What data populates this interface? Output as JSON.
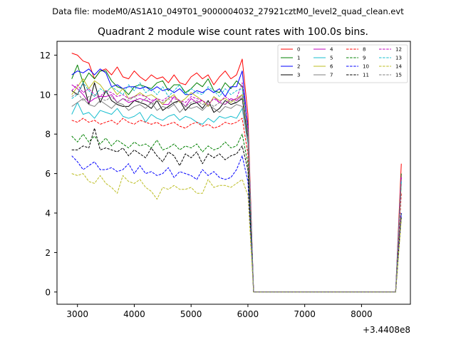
{
  "chart_data": {
    "type": "line",
    "suptitle": "Data file: modeM0/AS1A10_049T01_9000004032_27921cztM0_level2_quad_clean.evt",
    "title": "Quadrant 2 module wise count rates with 100.0s bins.",
    "xlabel": "",
    "ylabel": "",
    "x_offset_label": "+3.4408e8",
    "xlim": [
      2640,
      8860
    ],
    "ylim": [
      -0.62,
      12.7
    ],
    "x_ticks": [
      3000,
      4000,
      5000,
      6000,
      7000,
      8000
    ],
    "y_ticks": [
      0,
      2,
      4,
      6,
      8,
      10,
      12
    ],
    "grid": false,
    "legend_position": "top-right",
    "x": [
      2900,
      3000,
      3100,
      3200,
      3300,
      3400,
      3500,
      3600,
      3700,
      3800,
      3900,
      4000,
      4100,
      4200,
      4300,
      4400,
      4500,
      4600,
      4700,
      4800,
      4900,
      5000,
      5100,
      5200,
      5300,
      5400,
      5500,
      5600,
      5700,
      5800,
      5900,
      6000,
      6100,
      6200,
      6300,
      6400,
      6500,
      6600,
      6700,
      6800,
      6900,
      7000,
      7100,
      7200,
      7300,
      7400,
      7500,
      7600,
      7700,
      7800,
      7900,
      8000,
      8100,
      8200,
      8300,
      8400,
      8500,
      8600,
      8700
    ],
    "series": [
      {
        "name": "0",
        "color": "#ff0000",
        "dash": "solid",
        "values": [
          12.1,
          12.0,
          11.7,
          11.6,
          10.8,
          11.2,
          11.3,
          11.0,
          11.4,
          10.9,
          10.8,
          11.2,
          10.9,
          10.7,
          11.0,
          10.8,
          10.9,
          10.6,
          11.0,
          10.6,
          10.5,
          10.9,
          11.1,
          10.8,
          11.0,
          10.5,
          10.9,
          11.2,
          10.8,
          11.0,
          11.8,
          9.0,
          0.0,
          0.0,
          0.0,
          0.0,
          0.0,
          0.0,
          0.0,
          0.0,
          0.0,
          0.0,
          0.0,
          0.0,
          0.0,
          0.0,
          0.0,
          0.0,
          0.0,
          0.0,
          0.0,
          0.0,
          0.0,
          0.0,
          0.0,
          0.0,
          0.0,
          0.0,
          6.5
        ]
      },
      {
        "name": "1",
        "color": "#008000",
        "dash": "solid",
        "values": [
          10.8,
          11.5,
          10.6,
          11.1,
          10.8,
          11.2,
          11.2,
          10.7,
          10.4,
          10.3,
          10.0,
          10.4,
          10.5,
          10.4,
          10.3,
          10.6,
          10.7,
          10.2,
          10.5,
          10.5,
          10.1,
          10.3,
          10.6,
          10.4,
          10.8,
          10.2,
          10.1,
          10.6,
          10.3,
          10.7,
          10.4,
          8.5,
          0.0,
          0.0,
          0.0,
          0.0,
          0.0,
          0.0,
          0.0,
          0.0,
          0.0,
          0.0,
          0.0,
          0.0,
          0.0,
          0.0,
          0.0,
          0.0,
          0.0,
          0.0,
          0.0,
          0.0,
          0.0,
          0.0,
          0.0,
          0.0,
          0.0,
          0.0,
          6.0
        ]
      },
      {
        "name": "2",
        "color": "#0000ff",
        "dash": "solid",
        "values": [
          11.0,
          11.2,
          11.1,
          11.3,
          11.0,
          11.3,
          11.1,
          10.4,
          10.5,
          10.3,
          10.4,
          10.4,
          10.3,
          10.4,
          10.2,
          10.4,
          10.2,
          10.3,
          10.1,
          10.3,
          10.0,
          10.0,
          10.2,
          10.1,
          10.3,
          10.1,
          10.3,
          9.9,
          10.4,
          10.4,
          11.2,
          8.3,
          0.0,
          0.0,
          0.0,
          0.0,
          0.0,
          0.0,
          0.0,
          0.0,
          0.0,
          0.0,
          0.0,
          0.0,
          0.0,
          0.0,
          0.0,
          0.0,
          0.0,
          0.0,
          0.0,
          0.0,
          0.0,
          0.0,
          0.0,
          0.0,
          0.0,
          0.0,
          5.8
        ]
      },
      {
        "name": "3",
        "color": "#000000",
        "dash": "solid",
        "values": [
          10.2,
          10.0,
          10.6,
          9.5,
          10.6,
          9.6,
          10.2,
          9.7,
          9.5,
          9.4,
          9.4,
          9.7,
          9.6,
          9.5,
          9.3,
          9.7,
          9.2,
          9.4,
          9.6,
          9.7,
          9.2,
          9.5,
          9.6,
          9.3,
          9.7,
          9.1,
          9.3,
          9.7,
          9.5,
          9.6,
          9.8,
          7.8,
          0.0,
          0.0,
          0.0,
          0.0,
          0.0,
          0.0,
          0.0,
          0.0,
          0.0,
          0.0,
          0.0,
          0.0,
          0.0,
          0.0,
          0.0,
          0.0,
          0.0,
          0.0,
          0.0,
          0.0,
          0.0,
          0.0,
          0.0,
          0.0,
          0.0,
          0.0,
          4.0
        ]
      },
      {
        "name": "4",
        "color": "#bf00bf",
        "dash": "solid",
        "values": [
          10.5,
          10.3,
          10.0,
          9.6,
          9.8,
          9.9,
          9.9,
          10.0,
          9.6,
          9.8,
          9.6,
          9.7,
          9.8,
          9.7,
          9.6,
          9.8,
          9.5,
          9.5,
          9.9,
          9.7,
          9.4,
          9.8,
          9.6,
          9.7,
          9.4,
          9.9,
          9.6,
          9.5,
          9.8,
          9.7,
          10.0,
          8.2,
          0.0,
          0.0,
          0.0,
          0.0,
          0.0,
          0.0,
          0.0,
          0.0,
          0.0,
          0.0,
          0.0,
          0.0,
          0.0,
          0.0,
          0.0,
          0.0,
          0.0,
          0.0,
          0.0,
          0.0,
          0.0,
          0.0,
          0.0,
          0.0,
          0.0,
          0.0,
          5.8
        ]
      },
      {
        "name": "5",
        "color": "#17becf",
        "dash": "solid",
        "values": [
          9.0,
          9.6,
          9.0,
          9.1,
          8.8,
          9.2,
          9.1,
          9.0,
          9.3,
          8.9,
          8.8,
          8.9,
          9.1,
          8.6,
          9.0,
          8.8,
          8.7,
          8.9,
          9.0,
          8.7,
          8.9,
          8.8,
          8.6,
          8.5,
          8.8,
          8.6,
          8.9,
          8.8,
          8.9,
          8.8,
          9.3,
          7.5,
          0.0,
          0.0,
          0.0,
          0.0,
          0.0,
          0.0,
          0.0,
          0.0,
          0.0,
          0.0,
          0.0,
          0.0,
          0.0,
          0.0,
          0.0,
          0.0,
          0.0,
          0.0,
          0.0,
          0.0,
          0.0,
          0.0,
          0.0,
          0.0,
          0.0,
          0.0,
          5.6
        ]
      },
      {
        "name": "6",
        "color": "#bcbd22",
        "dash": "solid",
        "values": [
          10.0,
          10.4,
          10.8,
          10.3,
          10.7,
          10.5,
          10.1,
          10.4,
          10.0,
          10.3,
          9.8,
          9.9,
          10.1,
          9.9,
          10.0,
          9.8,
          9.5,
          9.8,
          10.0,
          9.6,
          9.8,
          10.1,
          9.9,
          9.7,
          9.4,
          9.9,
          9.7,
          9.8,
          9.6,
          9.8,
          10.0,
          8.0,
          0.0,
          0.0,
          0.0,
          0.0,
          0.0,
          0.0,
          0.0,
          0.0,
          0.0,
          0.0,
          0.0,
          0.0,
          0.0,
          0.0,
          0.0,
          0.0,
          0.0,
          0.0,
          0.0,
          0.0,
          0.0,
          0.0,
          0.0,
          0.0,
          0.0,
          0.0,
          5.5
        ]
      },
      {
        "name": "7",
        "color": "#7f7f7f",
        "dash": "solid",
        "values": [
          9.4,
          9.6,
          9.8,
          9.5,
          9.4,
          9.7,
          9.5,
          9.3,
          9.6,
          9.5,
          9.2,
          9.4,
          9.5,
          9.3,
          9.6,
          9.2,
          9.4,
          9.3,
          9.5,
          9.1,
          9.4,
          9.3,
          9.4,
          9.2,
          9.5,
          9.3,
          9.1,
          9.4,
          9.3,
          9.5,
          9.4,
          7.6,
          0.0,
          0.0,
          0.0,
          0.0,
          0.0,
          0.0,
          0.0,
          0.0,
          0.0,
          0.0,
          0.0,
          0.0,
          0.0,
          0.0,
          0.0,
          0.0,
          0.0,
          0.0,
          0.0,
          0.0,
          0.0,
          0.0,
          0.0,
          0.0,
          0.0,
          0.0,
          5.7
        ]
      },
      {
        "name": "8",
        "color": "#ff0000",
        "dash": "dashed",
        "values": [
          8.7,
          8.6,
          8.8,
          8.6,
          8.7,
          8.5,
          8.6,
          8.7,
          8.5,
          8.8,
          8.6,
          8.5,
          8.7,
          8.6,
          8.5,
          8.6,
          8.4,
          8.5,
          8.6,
          8.4,
          8.3,
          8.5,
          8.6,
          8.4,
          8.5,
          8.3,
          8.4,
          8.6,
          8.5,
          8.6,
          8.8,
          7.0,
          0.0,
          0.0,
          0.0,
          0.0,
          0.0,
          0.0,
          0.0,
          0.0,
          0.0,
          0.0,
          0.0,
          0.0,
          0.0,
          0.0,
          0.0,
          0.0,
          0.0,
          0.0,
          0.0,
          0.0,
          0.0,
          0.0,
          0.0,
          0.0,
          0.0,
          0.0,
          5.0
        ]
      },
      {
        "name": "9",
        "color": "#008000",
        "dash": "dashed",
        "values": [
          7.9,
          7.6,
          8.0,
          7.6,
          7.9,
          7.5,
          7.8,
          7.4,
          7.7,
          7.5,
          7.3,
          7.6,
          7.4,
          7.5,
          7.3,
          7.7,
          7.2,
          7.3,
          7.5,
          7.2,
          7.4,
          7.3,
          7.5,
          7.1,
          7.4,
          7.2,
          7.3,
          7.6,
          7.3,
          7.4,
          8.0,
          6.5,
          0.0,
          0.0,
          0.0,
          0.0,
          0.0,
          0.0,
          0.0,
          0.0,
          0.0,
          0.0,
          0.0,
          0.0,
          0.0,
          0.0,
          0.0,
          0.0,
          0.0,
          0.0,
          0.0,
          0.0,
          0.0,
          0.0,
          0.0,
          0.0,
          0.0,
          0.0,
          4.0
        ]
      },
      {
        "name": "10",
        "color": "#0000ff",
        "dash": "dashed",
        "values": [
          6.9,
          6.6,
          6.2,
          6.4,
          6.6,
          6.2,
          6.2,
          6.3,
          6.1,
          6.2,
          6.5,
          6.0,
          6.4,
          6.0,
          6.1,
          5.9,
          6.0,
          6.3,
          5.8,
          6.1,
          6.0,
          5.9,
          5.7,
          6.2,
          5.9,
          6.1,
          5.8,
          5.7,
          5.8,
          6.2,
          6.9,
          5.6,
          0.0,
          0.0,
          0.0,
          0.0,
          0.0,
          0.0,
          0.0,
          0.0,
          0.0,
          0.0,
          0.0,
          0.0,
          0.0,
          0.0,
          0.0,
          0.0,
          0.0,
          0.0,
          0.0,
          0.0,
          0.0,
          0.0,
          0.0,
          0.0,
          0.0,
          0.0,
          4.0
        ]
      },
      {
        "name": "11",
        "color": "#000000",
        "dash": "dashed",
        "values": [
          7.2,
          7.2,
          7.4,
          7.3,
          8.3,
          7.2,
          7.3,
          7.2,
          7.1,
          7.3,
          6.9,
          7.2,
          7.0,
          6.8,
          7.3,
          6.9,
          6.6,
          7.1,
          6.9,
          6.4,
          7.0,
          6.8,
          7.1,
          6.5,
          7.0,
          6.8,
          7.0,
          6.7,
          6.9,
          7.0,
          7.4,
          6.2,
          0.0,
          0.0,
          0.0,
          0.0,
          0.0,
          0.0,
          0.0,
          0.0,
          0.0,
          0.0,
          0.0,
          0.0,
          0.0,
          0.0,
          0.0,
          0.0,
          0.0,
          0.0,
          0.0,
          0.0,
          0.0,
          0.0,
          0.0,
          0.0,
          0.0,
          0.0,
          3.8
        ]
      },
      {
        "name": "12",
        "color": "#bf00bf",
        "dash": "dashed",
        "values": [
          10.2,
          10.5,
          10.1,
          10.3,
          10.0,
          9.9,
          10.2,
          10.1,
          9.9,
          10.0,
          9.8,
          9.9,
          10.0,
          9.9,
          9.7,
          9.8,
          9.7,
          9.9,
          9.8,
          9.7,
          9.6,
          9.9,
          9.8,
          9.7,
          9.5,
          9.8,
          9.6,
          9.9,
          9.7,
          9.8,
          10.6,
          8.4,
          0.0,
          0.0,
          0.0,
          0.0,
          0.0,
          0.0,
          0.0,
          0.0,
          0.0,
          0.0,
          0.0,
          0.0,
          0.0,
          0.0,
          0.0,
          0.0,
          0.0,
          0.0,
          0.0,
          0.0,
          0.0,
          0.0,
          0.0,
          0.0,
          0.0,
          0.0,
          5.9
        ]
      },
      {
        "name": "13",
        "color": "#17becf",
        "dash": "dashed",
        "values": [
          9.8,
          10.0,
          10.6,
          10.2,
          9.9,
          10.3,
          10.1,
          10.4,
          10.2,
          10.0,
          10.5,
          10.2,
          10.6,
          10.1,
          10.3,
          10.0,
          10.4,
          9.9,
          10.2,
          10.5,
          10.0,
          10.3,
          10.1,
          10.0,
          10.4,
          10.2,
          9.9,
          10.3,
          10.0,
          10.2,
          10.3,
          8.1,
          0.0,
          0.0,
          0.0,
          0.0,
          0.0,
          0.0,
          0.0,
          0.0,
          0.0,
          0.0,
          0.0,
          0.0,
          0.0,
          0.0,
          0.0,
          0.0,
          0.0,
          0.0,
          0.0,
          0.0,
          0.0,
          0.0,
          0.0,
          0.0,
          0.0,
          0.0,
          5.6
        ]
      },
      {
        "name": "14",
        "color": "#bcbd22",
        "dash": "dashed",
        "values": [
          6.0,
          5.9,
          6.0,
          5.6,
          5.5,
          5.9,
          5.5,
          5.3,
          5.0,
          5.9,
          5.6,
          5.5,
          5.7,
          5.3,
          5.1,
          4.7,
          5.3,
          5.2,
          5.4,
          5.2,
          5.2,
          5.3,
          5.0,
          5.0,
          5.7,
          5.3,
          5.4,
          5.4,
          5.3,
          5.5,
          5.7,
          4.9,
          0.0,
          0.0,
          0.0,
          0.0,
          0.0,
          0.0,
          0.0,
          0.0,
          0.0,
          0.0,
          0.0,
          0.0,
          0.0,
          0.0,
          0.0,
          0.0,
          0.0,
          0.0,
          0.0,
          0.0,
          0.0,
          0.0,
          0.0,
          0.0,
          0.0,
          0.0,
          3.7
        ]
      },
      {
        "name": "15",
        "color": "#7f7f7f",
        "dash": "dashed",
        "values": [
          9.9,
          10.1,
          9.7,
          9.9,
          10.0,
          9.8,
          9.7,
          9.9,
          9.6,
          9.8,
          9.7,
          9.9,
          9.6,
          9.8,
          9.5,
          9.7,
          9.6,
          9.8,
          9.5,
          9.7,
          9.4,
          9.6,
          9.7,
          9.5,
          9.6,
          9.4,
          9.6,
          9.5,
          9.7,
          9.6,
          9.9,
          8.0,
          0.0,
          0.0,
          0.0,
          0.0,
          0.0,
          0.0,
          0.0,
          0.0,
          0.0,
          0.0,
          0.0,
          0.0,
          0.0,
          0.0,
          0.0,
          0.0,
          0.0,
          0.0,
          0.0,
          0.0,
          0.0,
          0.0,
          0.0,
          0.0,
          0.0,
          0.0,
          5.5
        ]
      }
    ]
  }
}
